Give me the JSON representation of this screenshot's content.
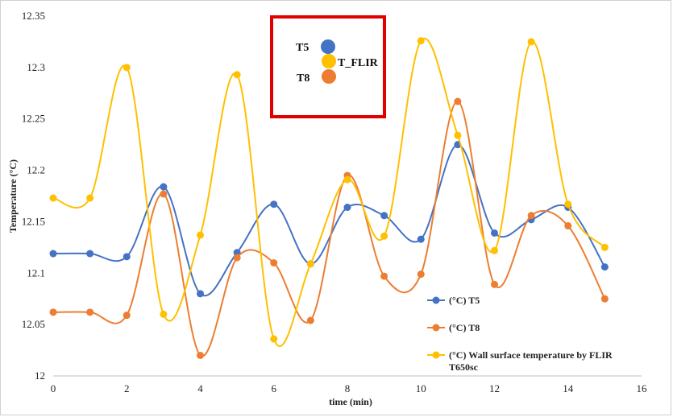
{
  "chart_data": {
    "type": "line",
    "smooth": true,
    "xlabel": "time (min)",
    "ylabel": "Temperature (°C)",
    "xlim": [
      0,
      16
    ],
    "ylim": [
      12,
      12.35
    ],
    "x_ticks": [
      "0",
      "2",
      "4",
      "6",
      "8",
      "10",
      "12",
      "14",
      "16"
    ],
    "y_ticks": [
      "12",
      "12.05",
      "12.1",
      "12.15",
      "12.2",
      "12.25",
      "12.3",
      "12.35"
    ],
    "grid": false,
    "legend_position": "bottom-right",
    "x": [
      0,
      1,
      2,
      3,
      4,
      5,
      6,
      7,
      8,
      9,
      10,
      11,
      12,
      13,
      14,
      15
    ],
    "series": [
      {
        "name": "(°C) T5",
        "color": "#4472C4",
        "values": [
          12.119,
          12.119,
          12.116,
          12.184,
          12.08,
          12.12,
          12.167,
          12.109,
          12.164,
          12.156,
          12.133,
          12.225,
          12.139,
          12.152,
          12.164,
          12.106
        ]
      },
      {
        "name": "(°C) T8",
        "color": "#ED7D31",
        "values": [
          12.062,
          12.062,
          12.059,
          12.177,
          12.02,
          12.115,
          12.11,
          12.054,
          12.195,
          12.097,
          12.099,
          12.267,
          12.089,
          12.156,
          12.146,
          12.075
        ]
      },
      {
        "name": "(°C) Wall surface temperature by FLIR T650sc",
        "color": "#FFC000",
        "values": [
          12.173,
          12.173,
          12.3,
          12.06,
          12.137,
          12.293,
          12.036,
          12.109,
          12.191,
          12.136,
          12.326,
          12.234,
          12.122,
          12.325,
          12.167,
          12.125
        ]
      }
    ],
    "legend_lines": [
      [
        "(°C) T5"
      ],
      [
        "(°C) T8"
      ],
      [
        "(°C) Wall surface temperature by FLIR",
        "T650sc"
      ]
    ],
    "annotation": {
      "labels": [
        "T5",
        "T_FLIR",
        "T8"
      ],
      "colors": [
        "#4472C4",
        "#FFC000",
        "#ED7D31"
      ],
      "border_color": "#E00000"
    }
  }
}
